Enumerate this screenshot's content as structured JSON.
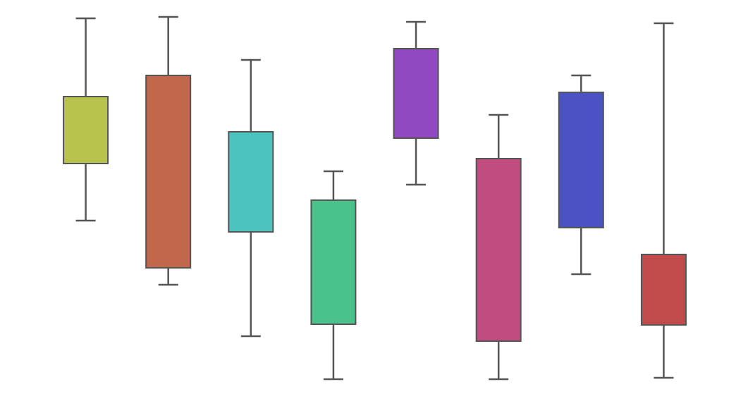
{
  "chart_data": {
    "type": "boxplot",
    "title": "",
    "xlabel": "",
    "ylabel": "",
    "axes_visible": false,
    "grid": false,
    "legend": "none",
    "ylim": [
      0,
      534
    ],
    "series": [
      {
        "low": 246,
        "q1": 327,
        "q3": 422,
        "high": 533,
        "color": "#b8c34e"
      },
      {
        "low": 155,
        "q1": 179,
        "q3": 452,
        "high": 535,
        "color": "#c1674c"
      },
      {
        "low": 82,
        "q1": 230,
        "q3": 372,
        "high": 474,
        "color": "#4cc3be"
      },
      {
        "low": 21,
        "q1": 99,
        "q3": 275,
        "high": 316,
        "color": "#49c389"
      },
      {
        "low": 297,
        "q1": 363,
        "q3": 490,
        "high": 528,
        "color": "#9149c1"
      },
      {
        "low": 21,
        "q1": 75,
        "q3": 334,
        "high": 396,
        "color": "#c14c80"
      },
      {
        "low": 170,
        "q1": 236,
        "q3": 428,
        "high": 452,
        "color": "#4a53c1"
      },
      {
        "low": 23,
        "q1": 98,
        "q3": 198,
        "high": 526,
        "color": "#c14b4b"
      }
    ]
  }
}
